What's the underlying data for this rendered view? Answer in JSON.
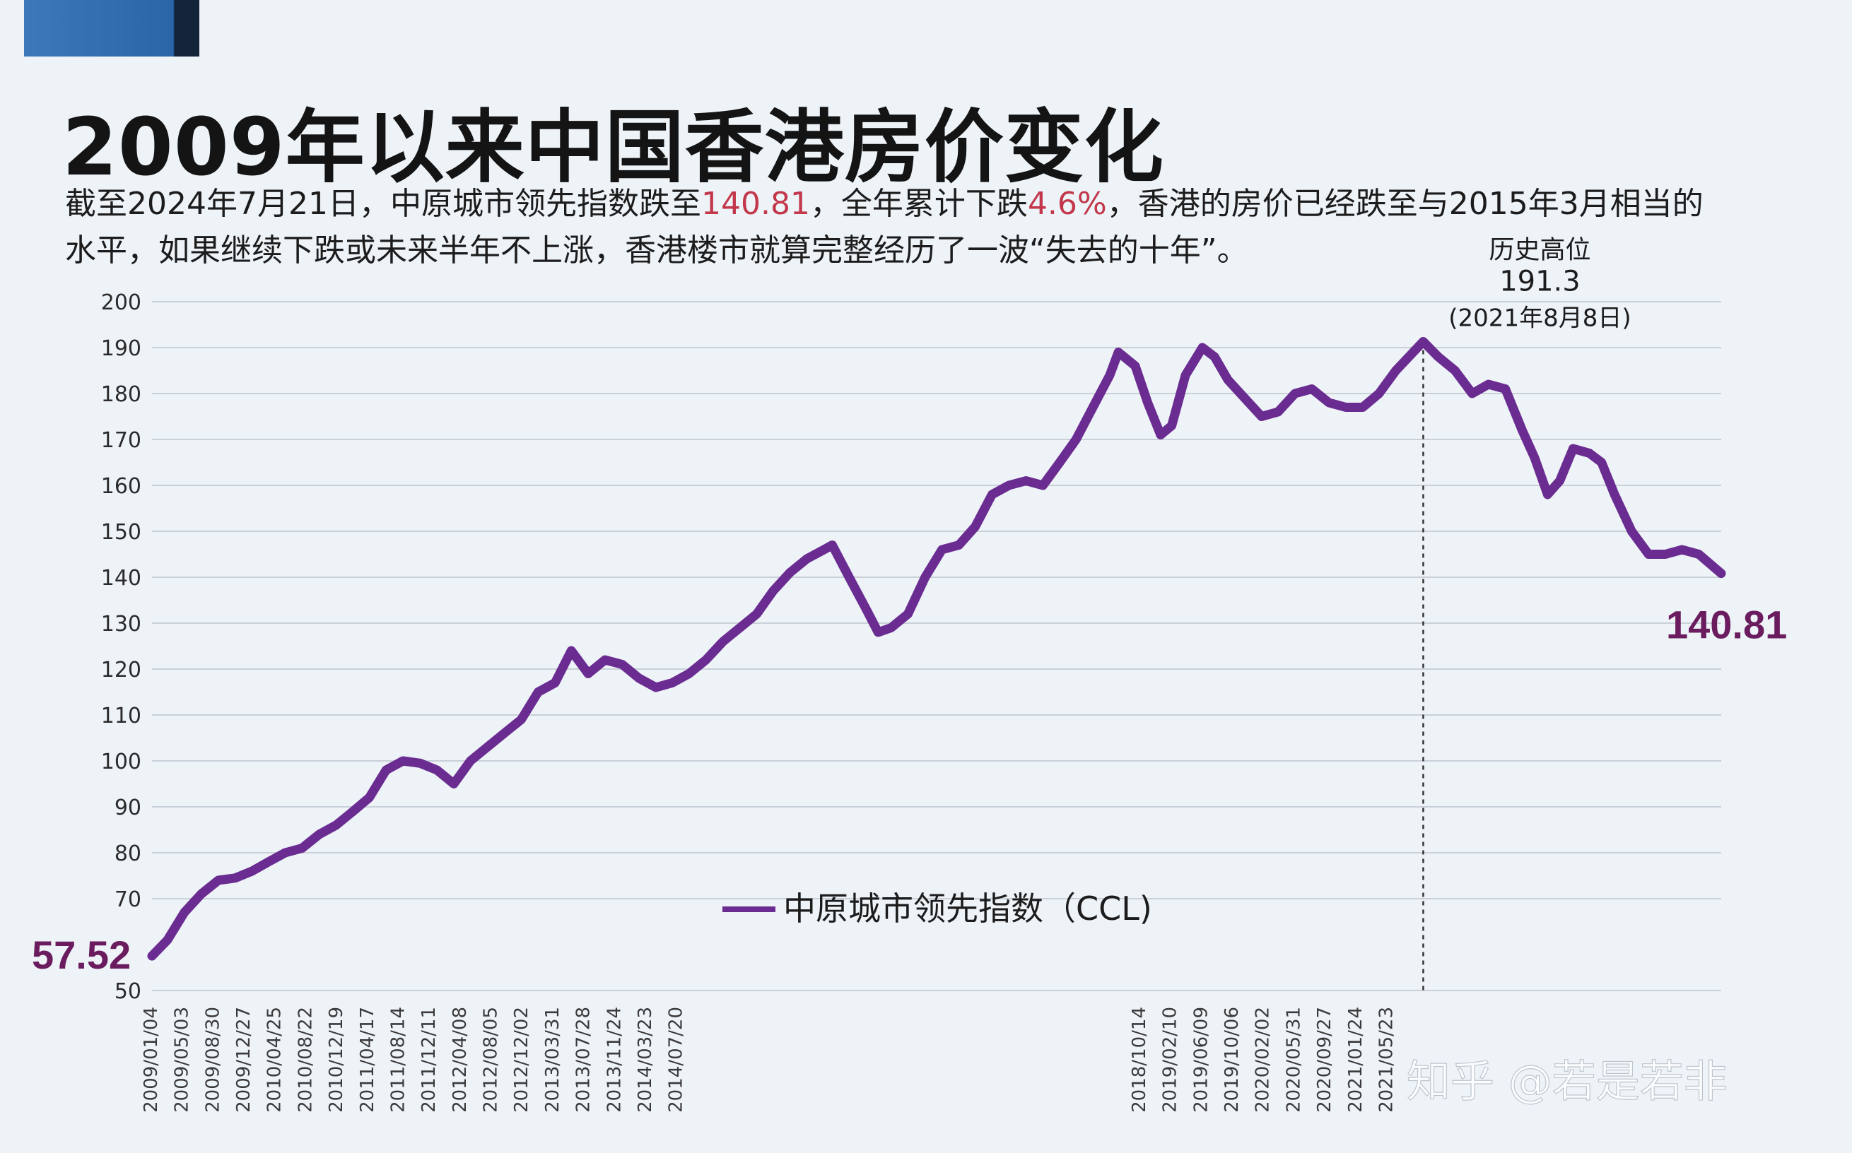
{
  "header": {
    "title": "2009年以来中国香港房价变化",
    "subtitle_parts": [
      "截至2024年7月21日，中原城市领先指数跌至",
      "140.81",
      "，全年累计下跌",
      "4.6%",
      "，香港的房价已经跌至与2015年3月相当的水平，如果继续下跌或未来半年不上涨，香港楼市就算完整经历了一波“失去的十年”。"
    ]
  },
  "watermark": "知乎 @若是若非",
  "colors": {
    "line": "#6a2c91",
    "value_label": "#6a1c5e",
    "highlight": "#c2374a",
    "grid": "#c9d0d8"
  },
  "chart_data": {
    "type": "line",
    "title": "",
    "xlabel": "",
    "ylabel": "",
    "ylim": [
      50,
      200
    ],
    "yticks": [
      200,
      190,
      180,
      170,
      160,
      150,
      140,
      130,
      120,
      110,
      100,
      90,
      80,
      70,
      50
    ],
    "grid": "horizontal",
    "legend": {
      "position": "bottom-center",
      "label": "中原城市领先指数（CCL)"
    },
    "x_tick_labels": [
      "2009/01/04",
      "2009/05/03",
      "2009/08/30",
      "2009/12/27",
      "2010/04/25",
      "2010/08/22",
      "2010/12/19",
      "2011/04/17",
      "2011/08/14",
      "2011/12/11",
      "2012/04/08",
      "2012/08/05",
      "2012/12/02",
      "2013/03/31",
      "2013/07/28",
      "2013/11/24",
      "2014/03/23",
      "2014/07/20",
      "",
      "",
      "",
      "",
      "",
      "",
      "",
      "",
      "",
      "",
      "",
      "",
      "",
      "",
      "2018/10/14",
      "2019/02/10",
      "2019/06/09",
      "2019/10/06",
      "2020/02/02",
      "2020/05/31",
      "2020/09/27",
      "2021/01/24",
      "2021/05/23",
      "",
      "",
      "",
      "",
      "",
      "",
      "",
      "",
      "",
      "",
      ""
    ],
    "series": [
      {
        "name": "中原城市领先指数（CCL)",
        "points": [
          [
            "2009-01-04",
            57.52
          ],
          [
            "2009-03-01",
            61
          ],
          [
            "2009-05-01",
            67
          ],
          [
            "2009-07-01",
            71
          ],
          [
            "2009-09-01",
            74
          ],
          [
            "2009-11-01",
            74.5
          ],
          [
            "2010-01-01",
            76
          ],
          [
            "2010-03-01",
            78
          ],
          [
            "2010-05-01",
            80
          ],
          [
            "2010-07-01",
            81
          ],
          [
            "2010-09-01",
            84
          ],
          [
            "2010-11-01",
            86
          ],
          [
            "2011-01-01",
            89
          ],
          [
            "2011-03-01",
            92
          ],
          [
            "2011-05-01",
            98
          ],
          [
            "2011-07-01",
            100
          ],
          [
            "2011-09-01",
            99.5
          ],
          [
            "2011-11-01",
            98
          ],
          [
            "2012-01-01",
            95
          ],
          [
            "2012-03-01",
            100
          ],
          [
            "2012-05-01",
            103
          ],
          [
            "2012-07-01",
            106
          ],
          [
            "2012-09-01",
            109
          ],
          [
            "2012-11-01",
            115
          ],
          [
            "2013-01-01",
            117
          ],
          [
            "2013-03-01",
            124
          ],
          [
            "2013-05-01",
            119
          ],
          [
            "2013-07-01",
            122
          ],
          [
            "2013-09-01",
            121
          ],
          [
            "2013-11-01",
            118
          ],
          [
            "2014-01-01",
            116
          ],
          [
            "2014-03-01",
            117
          ],
          [
            "2014-05-01",
            119
          ],
          [
            "2014-07-01",
            122
          ],
          [
            "2014-09-01",
            126
          ],
          [
            "2014-11-01",
            129
          ],
          [
            "2015-01-01",
            132
          ],
          [
            "2015-03-01",
            137
          ],
          [
            "2015-05-01",
            141
          ],
          [
            "2015-07-01",
            144
          ],
          [
            "2015-09-01",
            146
          ],
          [
            "2015-10-01",
            147
          ],
          [
            "2015-12-01",
            140
          ],
          [
            "2016-02-01",
            133
          ],
          [
            "2016-03-15",
            128
          ],
          [
            "2016-05-01",
            129
          ],
          [
            "2016-07-01",
            132
          ],
          [
            "2016-09-01",
            140
          ],
          [
            "2016-11-01",
            146
          ],
          [
            "2017-01-01",
            147
          ],
          [
            "2017-03-01",
            151
          ],
          [
            "2017-05-01",
            158
          ],
          [
            "2017-07-01",
            160
          ],
          [
            "2017-09-01",
            161
          ],
          [
            "2017-11-01",
            160
          ],
          [
            "2018-01-01",
            165
          ],
          [
            "2018-03-01",
            170
          ],
          [
            "2018-05-01",
            177
          ],
          [
            "2018-07-01",
            184
          ],
          [
            "2018-08-01",
            189
          ],
          [
            "2018-10-01",
            186
          ],
          [
            "2018-11-15",
            178
          ],
          [
            "2019-01-01",
            171
          ],
          [
            "2019-02-10",
            173
          ],
          [
            "2019-04-01",
            184
          ],
          [
            "2019-06-01",
            190
          ],
          [
            "2019-07-15",
            188
          ],
          [
            "2019-09-01",
            183
          ],
          [
            "2019-11-01",
            179
          ],
          [
            "2020-01-01",
            175
          ],
          [
            "2020-03-01",
            176
          ],
          [
            "2020-05-01",
            180
          ],
          [
            "2020-07-01",
            181
          ],
          [
            "2020-09-01",
            178
          ],
          [
            "2020-11-01",
            177
          ],
          [
            "2021-01-01",
            177
          ],
          [
            "2021-03-01",
            180
          ],
          [
            "2021-05-01",
            185
          ],
          [
            "2021-08-08",
            191.3
          ],
          [
            "2021-10-01",
            188
          ],
          [
            "2021-12-01",
            185
          ],
          [
            "2022-02-01",
            180
          ],
          [
            "2022-04-01",
            182
          ],
          [
            "2022-06-01",
            181
          ],
          [
            "2022-08-01",
            172
          ],
          [
            "2022-09-15",
            166
          ],
          [
            "2022-11-01",
            158
          ],
          [
            "2022-12-15",
            161
          ],
          [
            "2023-02-01",
            168
          ],
          [
            "2023-04-01",
            167
          ],
          [
            "2023-05-15",
            165
          ],
          [
            "2023-07-01",
            158
          ],
          [
            "2023-09-01",
            150
          ],
          [
            "2023-11-01",
            145
          ],
          [
            "2024-01-01",
            145
          ],
          [
            "2024-03-01",
            146
          ],
          [
            "2024-05-01",
            145
          ],
          [
            "2024-07-21",
            140.81
          ]
        ]
      }
    ],
    "annotations": [
      {
        "id": "start",
        "text": "57.52",
        "x": "2009-01-04",
        "y": 57.52
      },
      {
        "id": "peak",
        "label": "历史高位",
        "value": "191.3",
        "date": "(2021年8月8日)",
        "x": "2021-08-08",
        "y": 191.3
      },
      {
        "id": "end",
        "text": "140.81",
        "x": "2024-07-21",
        "y": 140.81
      }
    ]
  }
}
